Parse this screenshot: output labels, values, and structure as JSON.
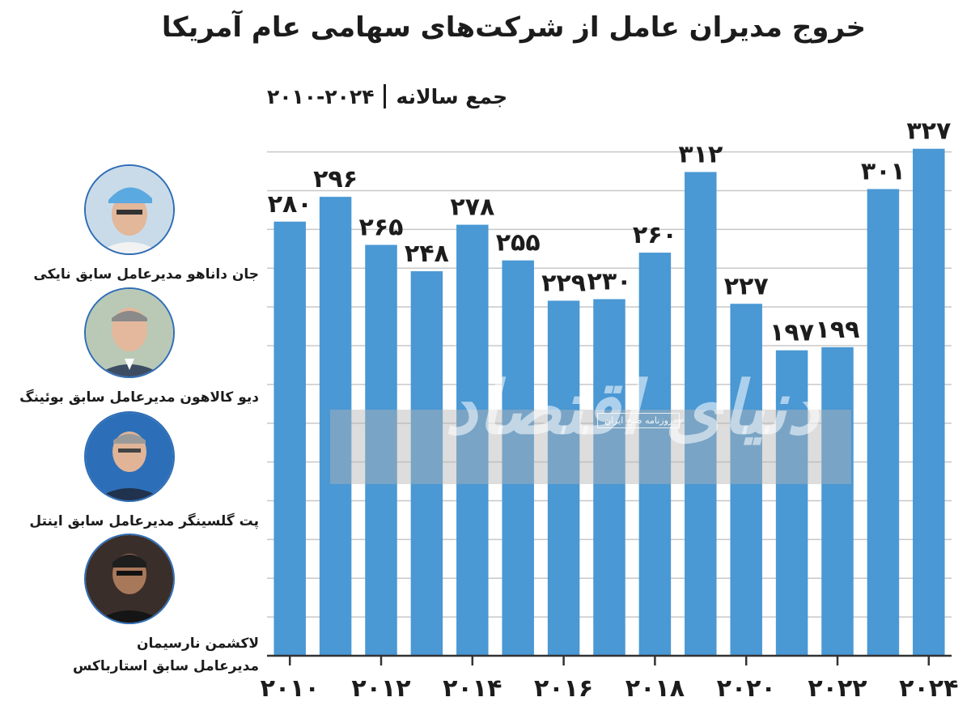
{
  "header": {
    "title": "خروج مدیران عامل از شرکت‌های سهامی عام آمریکا",
    "range": "۲۰۱۰-۲۰۲۴",
    "unit_label": "جمع سالانه"
  },
  "chart_data": {
    "type": "bar",
    "title": "خروج مدیران عامل از شرکت‌های سهامی عام آمریکا",
    "subtitle": "۲۰۱۰-۲۰۲۴ | جمع سالانه",
    "categories": [
      "2010",
      "2011",
      "2012",
      "2013",
      "2014",
      "2015",
      "2016",
      "2017",
      "2018",
      "2019",
      "2020",
      "2021",
      "2022",
      "2023",
      "2024"
    ],
    "values": [
      280,
      296,
      265,
      248,
      278,
      255,
      229,
      230,
      260,
      312,
      227,
      197,
      199,
      301,
      327
    ],
    "value_labels": [
      "۲۸۰",
      "۲۹۶",
      "۲۶۵",
      "۲۴۸",
      "۲۷۸",
      "۲۵۵",
      "۲۲۹",
      "۲۳۰",
      "۲۶۰",
      "۳۱۲",
      "۲۲۷",
      "۱۹۷",
      "۱۹۹",
      "۳۰۱",
      "۳۲۷"
    ],
    "x_tick_labels": [
      "۲۰۱۰",
      "۲۰۱۲",
      "۲۰۱۴",
      "۲۰۱۶",
      "۲۰۱۸",
      "۲۰۲۰",
      "۲۰۲۲",
      "۲۰۲۴"
    ],
    "x_tick_years": [
      2010,
      2012,
      2014,
      2016,
      2018,
      2020,
      2022,
      2024
    ],
    "ylim": [
      0,
      330
    ],
    "grid": true,
    "bar_color": "#4a98d4",
    "grid_color": "#c8c8c8",
    "axis_color": "#333333"
  },
  "people": [
    {
      "caption": "جان داناهو مدیرعامل سابق نایکی",
      "caption2": ""
    },
    {
      "caption": "دیو کالاهون مدیرعامل سابق بوئینگ",
      "caption2": ""
    },
    {
      "caption": "پت گلسینگر مدیرعامل سابق اینتل",
      "caption2": ""
    },
    {
      "caption": "لاکشمن نارسیمان",
      "caption2": "مدیرعامل سابق استارباکس"
    }
  ],
  "watermark": {
    "brand": "دنیای اقتصاد",
    "tag": "روزنامه صبح ایران"
  }
}
